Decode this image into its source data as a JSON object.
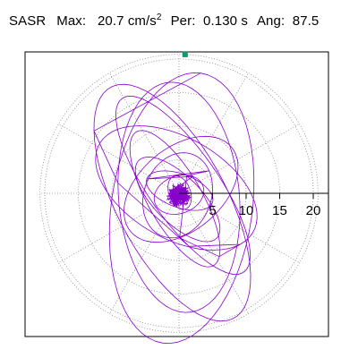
{
  "header": {
    "station": "SASR",
    "max_label": "Max:",
    "max_value": "20.7 cm/s",
    "max_exponent": "2",
    "per_label": "Per:",
    "per_value": "0.130 s",
    "ang_label": "Ang:",
    "ang_value": "87.5"
  },
  "colors": {
    "trace": "#8800cc",
    "marker": "#00a070",
    "grid": "#888888",
    "frame": "#000000"
  },
  "chart_data": {
    "type": "polar-particle-motion",
    "radial_ticks": [
      "5",
      "10",
      "15",
      "20"
    ],
    "radial_tick_values": [
      5,
      10,
      15,
      20
    ],
    "radial_max": 20.7,
    "spoke_spacing_deg": 30,
    "grid": true,
    "max_marker_angle_deg": 87.5,
    "max_marker_value": 20.7
  }
}
